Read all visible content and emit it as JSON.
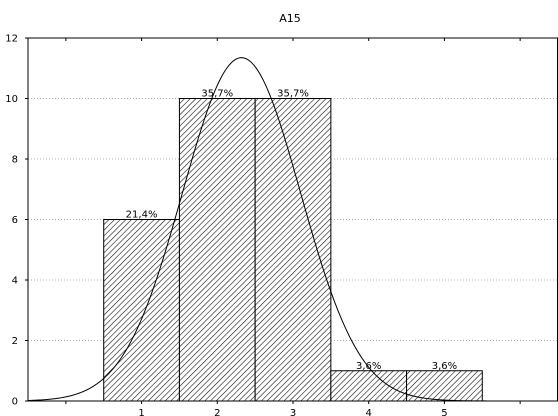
{
  "chart_data": {
    "type": "bar",
    "title": "A15",
    "xlabel": "",
    "ylabel": "",
    "categories": [
      "1",
      "2",
      "3",
      "4",
      "5"
    ],
    "values": [
      6,
      10,
      10,
      1,
      1
    ],
    "data_labels": [
      "21,4%",
      "35,7%",
      "35,7%",
      "3,6%",
      "3,6%"
    ],
    "yticks": [
      "0",
      "2",
      "4",
      "6",
      "8",
      "10",
      "12"
    ],
    "ylim": [
      0,
      12
    ],
    "xlim": [
      -0.5,
      6.5
    ],
    "grid": true,
    "bar_pattern": "diagonal-hatch",
    "fit_curve": {
      "type": "normal",
      "mean": 2.32,
      "sd": 0.78,
      "peak": 11.35
    },
    "colors": {
      "bar_stroke": "#000000",
      "hatch": "#000000",
      "grid": "#999999",
      "curve": "#000000"
    }
  }
}
